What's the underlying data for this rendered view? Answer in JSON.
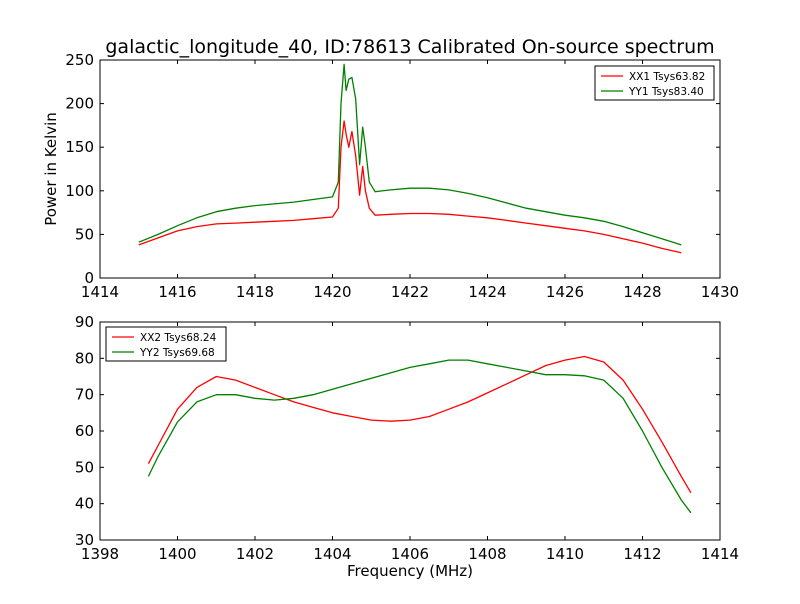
{
  "figure": {
    "title": "galactic_longitude_40, ID:78613 Calibrated On-source spectrum"
  },
  "chart_data": [
    {
      "type": "line",
      "title": "galactic_longitude_40, ID:78613 Calibrated On-source spectrum",
      "xlabel": "",
      "ylabel": "Power in Kelvin",
      "xlim": [
        1414,
        1430
      ],
      "ylim": [
        0,
        250
      ],
      "xticks": [
        1414,
        1416,
        1418,
        1420,
        1422,
        1424,
        1426,
        1428,
        1430
      ],
      "yticks": [
        0,
        50,
        100,
        150,
        200,
        250
      ],
      "grid": false,
      "legend_position": "top-right",
      "series": [
        {
          "name": "XX1 Tsys63.82",
          "color": "#ff0000",
          "x": [
            1415.0,
            1415.5,
            1416.0,
            1416.5,
            1417.0,
            1417.5,
            1418.0,
            1418.5,
            1419.0,
            1419.5,
            1420.0,
            1420.15,
            1420.22,
            1420.3,
            1420.35,
            1420.42,
            1420.5,
            1420.6,
            1420.7,
            1420.78,
            1420.85,
            1420.95,
            1421.1,
            1421.5,
            1422.0,
            1422.5,
            1423.0,
            1423.5,
            1424.0,
            1424.5,
            1425.0,
            1425.5,
            1426.0,
            1426.5,
            1427.0,
            1427.5,
            1428.0,
            1428.5,
            1429.0
          ],
          "y": [
            38,
            46,
            54,
            59,
            62,
            63,
            64,
            65,
            66,
            68,
            70,
            80,
            150,
            180,
            165,
            150,
            168,
            140,
            95,
            128,
            100,
            80,
            72,
            73,
            74,
            74,
            73,
            71,
            69,
            66,
            63,
            60,
            57,
            54,
            50,
            45,
            40,
            34,
            29
          ]
        },
        {
          "name": "YY1 Tsys83.40",
          "color": "#008000",
          "x": [
            1415.0,
            1415.5,
            1416.0,
            1416.5,
            1417.0,
            1417.5,
            1418.0,
            1418.5,
            1419.0,
            1419.5,
            1420.0,
            1420.15,
            1420.22,
            1420.3,
            1420.35,
            1420.42,
            1420.5,
            1420.6,
            1420.7,
            1420.78,
            1420.85,
            1420.95,
            1421.1,
            1421.5,
            1422.0,
            1422.5,
            1423.0,
            1423.5,
            1424.0,
            1424.5,
            1425.0,
            1425.5,
            1426.0,
            1426.5,
            1427.0,
            1427.5,
            1428.0,
            1428.5,
            1429.0
          ],
          "y": [
            41,
            50,
            60,
            69,
            76,
            80,
            83,
            85,
            87,
            90,
            93,
            110,
            200,
            245,
            215,
            228,
            230,
            205,
            130,
            173,
            150,
            110,
            99,
            101,
            103,
            103,
            101,
            97,
            92,
            86,
            80,
            76,
            72,
            69,
            65,
            59,
            52,
            45,
            38
          ]
        }
      ]
    },
    {
      "type": "line",
      "title": "",
      "xlabel": "Frequency (MHz)",
      "ylabel": "",
      "xlim": [
        1398,
        1414
      ],
      "ylim": [
        30,
        90
      ],
      "xticks": [
        1398,
        1400,
        1402,
        1404,
        1406,
        1408,
        1410,
        1412,
        1414
      ],
      "yticks": [
        30,
        40,
        50,
        60,
        70,
        80,
        90
      ],
      "grid": false,
      "legend_position": "top-left",
      "series": [
        {
          "name": "XX2 Tsys68.24",
          "color": "#ff0000",
          "x": [
            1399.25,
            1399.5,
            1400.0,
            1400.5,
            1401.0,
            1401.5,
            1402.0,
            1402.5,
            1403.0,
            1403.5,
            1404.0,
            1404.5,
            1405.0,
            1405.5,
            1406.0,
            1406.5,
            1407.0,
            1407.5,
            1408.0,
            1408.5,
            1409.0,
            1409.5,
            1410.0,
            1410.5,
            1411.0,
            1411.5,
            1412.0,
            1412.5,
            1413.0,
            1413.25
          ],
          "y": [
            51,
            56,
            66,
            72,
            75,
            74,
            72,
            70,
            68,
            66.5,
            65,
            64,
            63,
            62.7,
            63,
            64,
            66,
            68,
            70.5,
            73,
            75.5,
            78,
            79.5,
            80.5,
            79,
            74,
            66,
            57,
            47.5,
            43
          ]
        },
        {
          "name": "YY2 Tsys69.68",
          "color": "#008000",
          "x": [
            1399.25,
            1399.5,
            1400.0,
            1400.5,
            1401.0,
            1401.5,
            1402.0,
            1402.5,
            1403.0,
            1403.5,
            1404.0,
            1404.5,
            1405.0,
            1405.5,
            1406.0,
            1406.5,
            1407.0,
            1407.5,
            1408.0,
            1408.5,
            1409.0,
            1409.5,
            1410.0,
            1410.5,
            1411.0,
            1411.5,
            1412.0,
            1412.5,
            1413.0,
            1413.25
          ],
          "y": [
            47.5,
            53,
            62.5,
            68,
            70,
            70,
            69,
            68.5,
            69,
            70,
            71.5,
            73,
            74.5,
            76,
            77.5,
            78.5,
            79.5,
            79.5,
            78.5,
            77.5,
            76.5,
            75.5,
            75.5,
            75.2,
            74,
            69,
            60,
            50,
            41,
            37.5
          ]
        }
      ]
    }
  ]
}
